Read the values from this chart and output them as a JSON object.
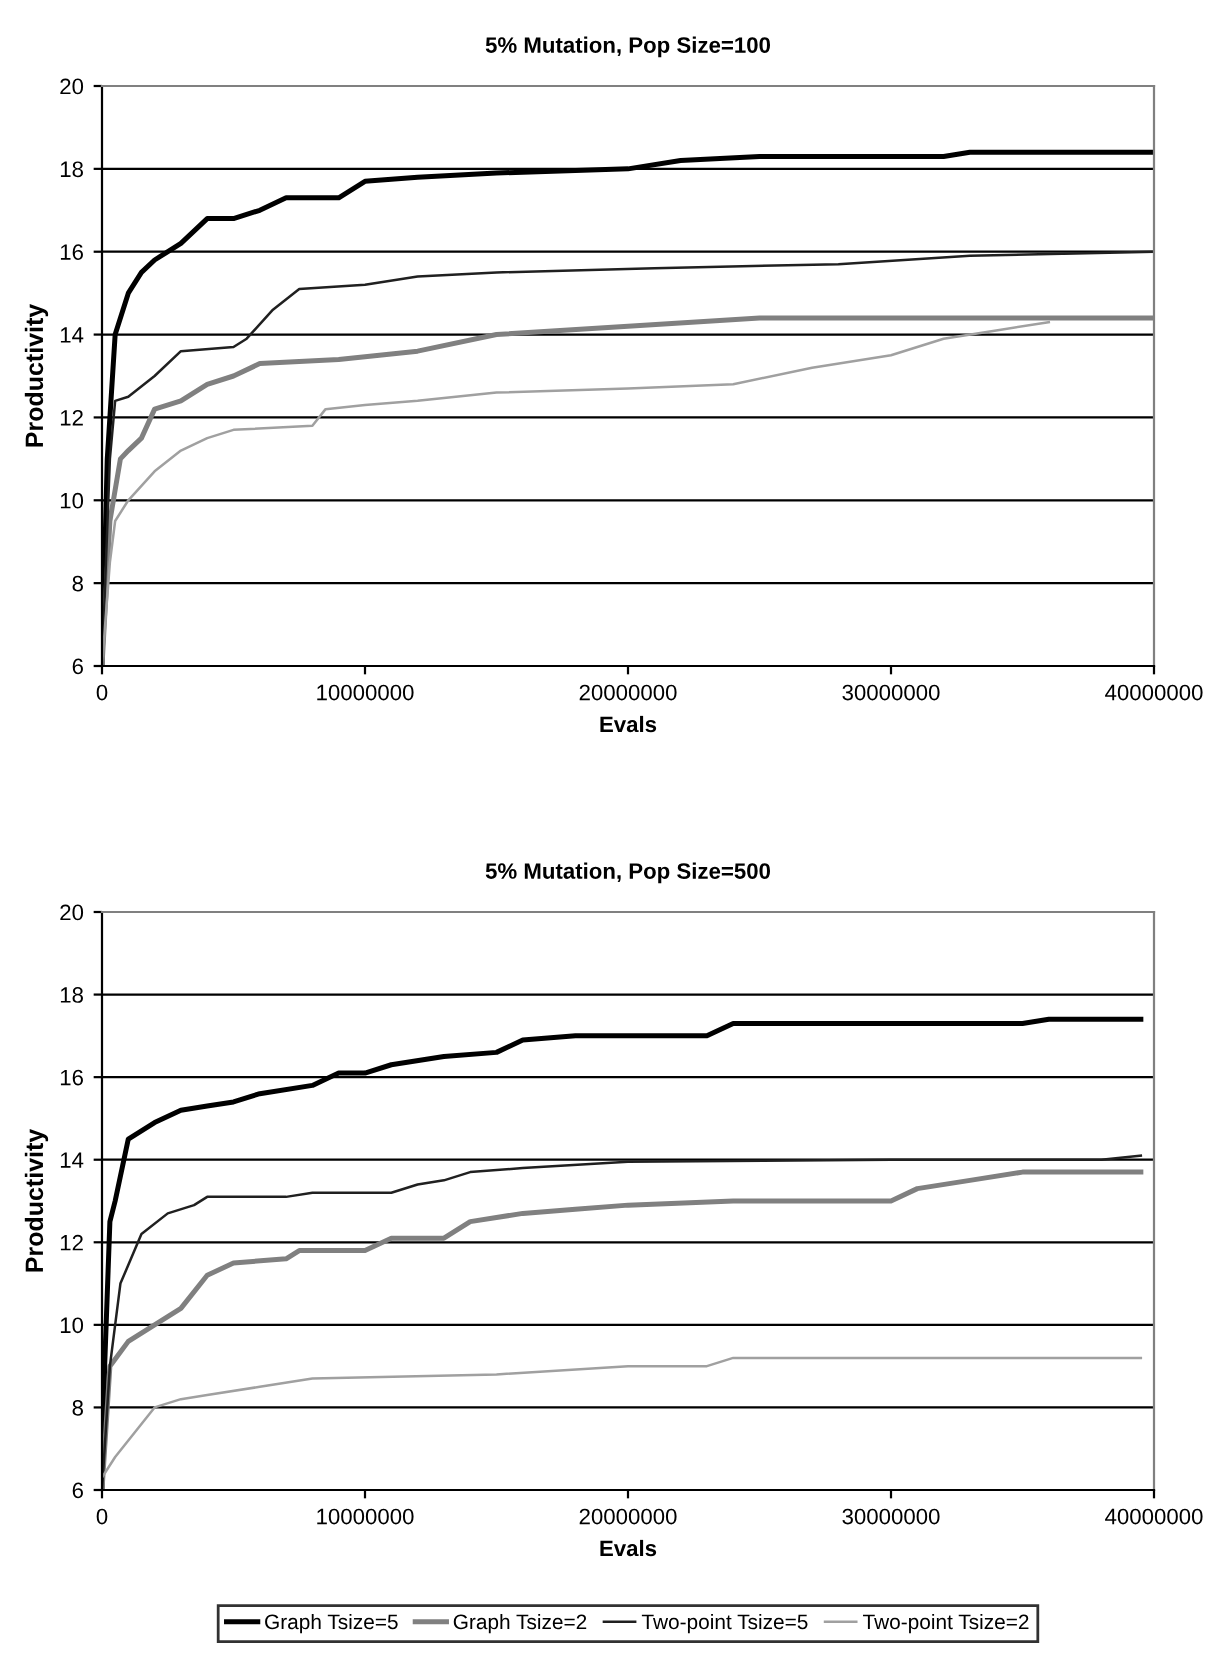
{
  "chart_data": [
    {
      "type": "line",
      "title": "5% Mutation, Pop Size=100",
      "xlabel": "Evals",
      "ylabel": "Productivity",
      "xlim": [
        0,
        40000000
      ],
      "xticks": [
        0,
        10000000,
        20000000,
        30000000,
        40000000
      ],
      "ylim": [
        6,
        20
      ],
      "yticks": [
        6,
        8,
        10,
        12,
        14,
        16,
        18,
        20
      ],
      "grid": "y",
      "legend": false,
      "marker": "none",
      "line_style": "solid",
      "series": [
        {
          "color": "#000000",
          "x": [
            0,
            200000,
            500000,
            1000000,
            1500000,
            2000000,
            3000000,
            4000000,
            5000000,
            6000000,
            7000000,
            9000000,
            10000000,
            12000000,
            15000000,
            20000000,
            22000000,
            25000000,
            32000000,
            33000000,
            40000000
          ],
          "values": [
            6,
            11,
            14,
            15,
            15.5,
            15.8,
            16.2,
            16.8,
            16.8,
            17.0,
            17.3,
            17.3,
            17.7,
            17.8,
            17.9,
            18.0,
            18.2,
            18.3,
            18.3,
            18.4,
            18.4
          ]
        },
        {
          "color": "#808080",
          "x": [
            0,
            300000,
            700000,
            1000000,
            1500000,
            2000000,
            3000000,
            4000000,
            5000000,
            6000000,
            9000000,
            12000000,
            15000000,
            20000000,
            25000000,
            40000000
          ],
          "values": [
            6,
            9.5,
            11,
            11.2,
            11.5,
            12.2,
            12.4,
            12.8,
            13.0,
            13.3,
            13.4,
            13.6,
            14.0,
            14.2,
            14.4,
            14.4
          ]
        },
        {
          "color": "#202020",
          "x": [
            0,
            300000,
            500000,
            1000000,
            2000000,
            3000000,
            5000000,
            5500000,
            6500000,
            7500000,
            10000000,
            12000000,
            15000000,
            21000000,
            28000000,
            33000000,
            40000000
          ],
          "values": [
            6,
            11,
            12.4,
            12.5,
            13.0,
            13.6,
            13.7,
            13.9,
            14.6,
            15.1,
            15.2,
            15.4,
            15.5,
            15.6,
            15.7,
            15.9,
            16.0
          ]
        },
        {
          "color": "#a0a0a0",
          "x": [
            0,
            300000,
            500000,
            1000000,
            2000000,
            3000000,
            4000000,
            5000000,
            8000000,
            8500000,
            10000000,
            12000000,
            15000000,
            20000000,
            24000000,
            27000000,
            30000000,
            32000000,
            34000000,
            36000000
          ],
          "values": [
            6,
            8.5,
            9.5,
            10,
            10.7,
            11.2,
            11.5,
            11.7,
            11.8,
            12.2,
            12.3,
            12.4,
            12.6,
            12.7,
            12.8,
            13.2,
            13.5,
            13.9,
            14.1,
            14.3
          ]
        }
      ]
    },
    {
      "type": "line",
      "title": "5% Mutation, Pop Size=500",
      "xlabel": "Evals",
      "ylabel": "Productivity",
      "xlim": [
        0,
        40000000
      ],
      "xticks": [
        0,
        10000000,
        20000000,
        30000000,
        40000000
      ],
      "ylim": [
        6,
        20
      ],
      "yticks": [
        6,
        8,
        10,
        12,
        14,
        16,
        18,
        20
      ],
      "grid": "y",
      "legend": "bottom",
      "marker": "none",
      "line_style": "solid",
      "series": [
        {
          "name": "Graph Tsize=5",
          "color": "#000000",
          "x": [
            0,
            100000,
            300000,
            500000,
            1000000,
            2000000,
            3000000,
            4000000,
            5000000,
            6000000,
            8000000,
            9000000,
            10000000,
            11000000,
            13000000,
            15000000,
            16000000,
            18000000,
            23000000,
            24000000,
            35000000,
            36000000,
            39500000
          ],
          "values": [
            6,
            9,
            12.5,
            13,
            14.5,
            14.9,
            15.2,
            15.3,
            15.4,
            15.6,
            15.8,
            16.1,
            16.1,
            16.3,
            16.5,
            16.6,
            16.9,
            17.0,
            17.0,
            17.3,
            17.3,
            17.4,
            17.4
          ]
        },
        {
          "name": "Graph Tsize=2",
          "color": "#808080",
          "x": [
            0,
            300000,
            1000000,
            2000000,
            3000000,
            4000000,
            5000000,
            7000000,
            7500000,
            10000000,
            11000000,
            13000000,
            14000000,
            16000000,
            18000000,
            20000000,
            24000000,
            30000000,
            31000000,
            33000000,
            35000000,
            39500000
          ],
          "values": [
            6,
            9,
            9.6,
            10.0,
            10.4,
            11.2,
            11.5,
            11.6,
            11.8,
            11.8,
            12.1,
            12.1,
            12.5,
            12.7,
            12.8,
            12.9,
            13.0,
            13.0,
            13.3,
            13.5,
            13.7,
            13.7
          ]
        },
        {
          "name": "Two-point Tsize=5",
          "color": "#202020",
          "x": [
            0,
            300000,
            700000,
            1500000,
            2500000,
            3500000,
            4000000,
            7000000,
            8000000,
            11000000,
            12000000,
            13000000,
            14000000,
            16000000,
            20000000,
            30000000,
            38000000,
            39500000
          ],
          "values": [
            6,
            9,
            11,
            12.2,
            12.7,
            12.9,
            13.1,
            13.1,
            13.2,
            13.2,
            13.4,
            13.5,
            13.7,
            13.8,
            13.95,
            14.0,
            14.0,
            14.1
          ]
        },
        {
          "name": "Two-point Tsize=2",
          "color": "#a0a0a0",
          "x": [
            0,
            500000,
            2000000,
            3000000,
            4000000,
            6000000,
            8000000,
            15000000,
            20000000,
            23000000,
            24000000,
            35000000,
            39500000
          ],
          "values": [
            6.3,
            6.8,
            8.0,
            8.2,
            8.3,
            8.5,
            8.7,
            8.8,
            9.0,
            9.0,
            9.2,
            9.2,
            9.2
          ]
        }
      ]
    }
  ]
}
